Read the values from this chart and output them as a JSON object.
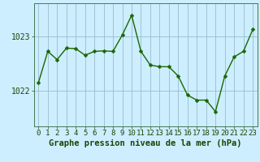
{
  "x": [
    0,
    1,
    2,
    3,
    4,
    5,
    6,
    7,
    8,
    9,
    10,
    11,
    12,
    13,
    14,
    15,
    16,
    17,
    18,
    19,
    20,
    21,
    22,
    23
  ],
  "y": [
    1022.15,
    1022.72,
    1022.57,
    1022.78,
    1022.77,
    1022.65,
    1022.72,
    1022.73,
    1022.72,
    1023.02,
    1023.38,
    1022.72,
    1022.47,
    1022.44,
    1022.44,
    1022.27,
    1021.92,
    1021.83,
    1021.83,
    1021.62,
    1022.27,
    1022.62,
    1022.72,
    1023.12
  ],
  "line_color": "#1a6600",
  "marker_color": "#1a6600",
  "bg_color": "#cceeff",
  "plot_bg_color": "#cceeff",
  "grid_color": "#99bbcc",
  "xlabel": "Graphe pression niveau de la mer (hPa)",
  "ylabel_ticks": [
    1022,
    1023
  ],
  "ylim": [
    1021.35,
    1023.6
  ],
  "xlim": [
    -0.5,
    23.5
  ],
  "axis_label_fontsize": 7.5,
  "tick_fontsize": 6.5,
  "marker_size": 2.5,
  "line_width": 1.0
}
